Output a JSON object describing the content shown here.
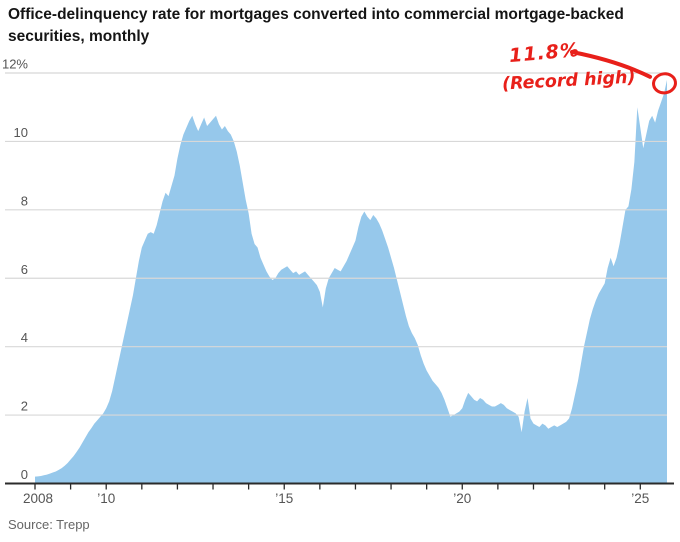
{
  "header": {
    "title": "Office-delinquency rate for mortgages converted into commercial mortgage-backed securities, monthly"
  },
  "footer": {
    "source": "Source: Trepp"
  },
  "annotation": {
    "value": "11.8%",
    "note": "(Record high)"
  },
  "chart_data": {
    "type": "area",
    "title": "Office-delinquency rate for mortgages converted into commercial mortgage-backed securities, monthly",
    "series_name": "Office delinquency rate",
    "unit": "%",
    "frequency": "monthly",
    "x_start": "2008-01",
    "x_end": "2025-10",
    "ylim": [
      0,
      12
    ],
    "grid": true,
    "legend": false,
    "yticks": [
      {
        "value": 12,
        "label": "12%"
      },
      {
        "value": 10,
        "label": "10"
      },
      {
        "value": 8,
        "label": "8"
      },
      {
        "value": 6,
        "label": "6"
      },
      {
        "value": 4,
        "label": "4"
      },
      {
        "value": 2,
        "label": "2"
      },
      {
        "value": 0,
        "label": "0"
      }
    ],
    "xticks": [
      {
        "year": 2008,
        "label": "2008"
      },
      {
        "year": 2010,
        "label": "’10"
      },
      {
        "year": 2015,
        "label": "’15"
      },
      {
        "year": 2020,
        "label": "’20"
      },
      {
        "year": 2025,
        "label": "’25"
      }
    ],
    "minor_xticks_every_year": true,
    "record_high": {
      "value": 11.8,
      "note": "(Record high)"
    },
    "colors": {
      "area": "#96c8eb",
      "grid": "#d8d8d8",
      "axis": "#2b2b2b",
      "tick_labels": "#555555",
      "title": "#151515",
      "source": "#666666",
      "annotation": "#e8201a"
    },
    "values": [
      0.2,
      0.21,
      0.22,
      0.24,
      0.26,
      0.29,
      0.32,
      0.35,
      0.4,
      0.45,
      0.52,
      0.6,
      0.7,
      0.8,
      0.92,
      1.05,
      1.2,
      1.35,
      1.5,
      1.62,
      1.75,
      1.85,
      1.95,
      2.05,
      2.2,
      2.4,
      2.7,
      3.1,
      3.5,
      3.9,
      4.3,
      4.7,
      5.1,
      5.5,
      6.0,
      6.5,
      6.9,
      7.1,
      7.3,
      7.35,
      7.3,
      7.55,
      7.9,
      8.25,
      8.5,
      8.4,
      8.7,
      9.0,
      9.5,
      9.9,
      10.2,
      10.4,
      10.6,
      10.75,
      10.5,
      10.3,
      10.5,
      10.7,
      10.45,
      10.55,
      10.65,
      10.75,
      10.5,
      10.35,
      10.45,
      10.3,
      10.2,
      10.0,
      9.7,
      9.3,
      8.8,
      8.3,
      7.9,
      7.3,
      7.0,
      6.9,
      6.6,
      6.4,
      6.2,
      6.05,
      5.95,
      6.0,
      6.15,
      6.25,
      6.3,
      6.35,
      6.25,
      6.15,
      6.2,
      6.1,
      6.15,
      6.2,
      6.1,
      6.0,
      5.9,
      5.8,
      5.6,
      5.15,
      5.7,
      6.0,
      6.15,
      6.3,
      6.25,
      6.2,
      6.35,
      6.5,
      6.7,
      6.9,
      7.1,
      7.5,
      7.8,
      7.95,
      7.8,
      7.7,
      7.85,
      7.75,
      7.6,
      7.4,
      7.15,
      6.9,
      6.6,
      6.3,
      5.95,
      5.6,
      5.25,
      4.9,
      4.6,
      4.4,
      4.25,
      4.05,
      3.75,
      3.5,
      3.3,
      3.15,
      3.0,
      2.9,
      2.8,
      2.65,
      2.45,
      2.2,
      1.95,
      2.0,
      2.05,
      2.1,
      2.2,
      2.45,
      2.65,
      2.55,
      2.45,
      2.4,
      2.5,
      2.45,
      2.35,
      2.3,
      2.25,
      2.25,
      2.3,
      2.35,
      2.3,
      2.2,
      2.15,
      2.1,
      2.05,
      1.95,
      1.5,
      2.1,
      2.5,
      1.9,
      1.75,
      1.7,
      1.65,
      1.75,
      1.7,
      1.6,
      1.65,
      1.7,
      1.65,
      1.7,
      1.75,
      1.8,
      1.9,
      2.2,
      2.6,
      3.0,
      3.5,
      4.0,
      4.4,
      4.8,
      5.1,
      5.35,
      5.55,
      5.7,
      5.85,
      6.3,
      6.6,
      6.35,
      6.6,
      7.0,
      7.5,
      8.0,
      8.1,
      8.6,
      9.4,
      11.0,
      10.4,
      9.8,
      10.2,
      10.6,
      10.75,
      10.55,
      10.9,
      11.15,
      11.4,
      11.8
    ]
  }
}
